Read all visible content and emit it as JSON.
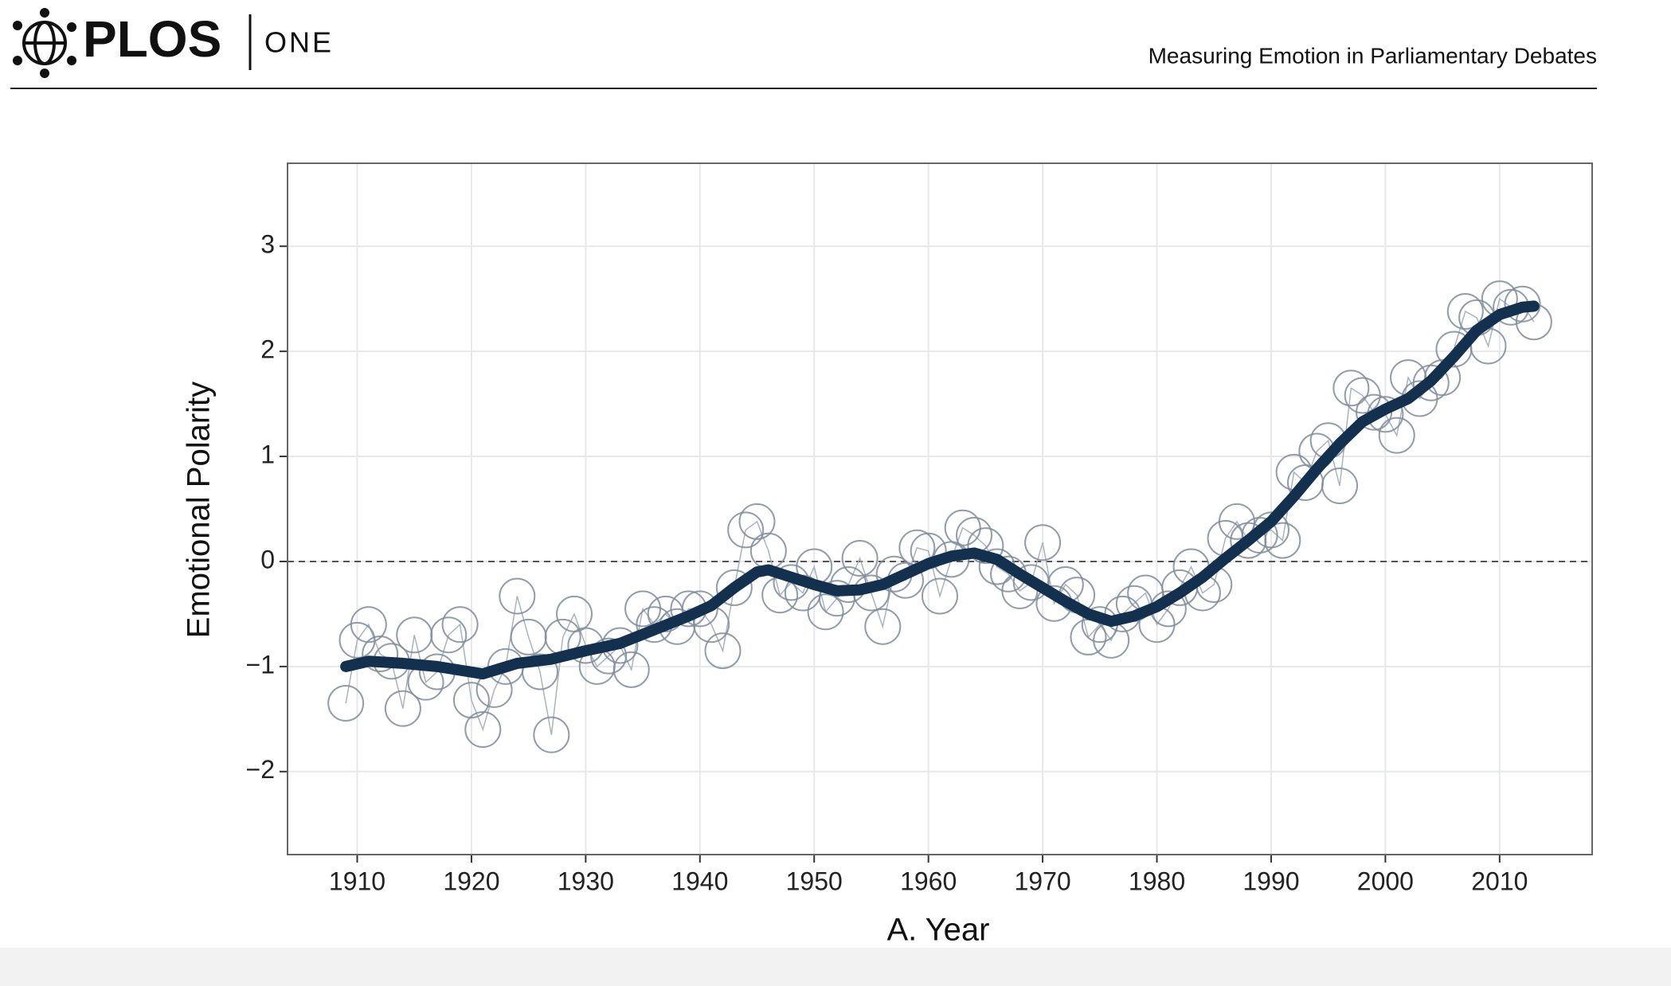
{
  "header": {
    "logo": "PLOS",
    "journal": "ONE",
    "running_title": "Measuring Emotion in Parliamentary Debates"
  },
  "chart_data": {
    "type": "scatter",
    "xlabel": "A. Year",
    "ylabel": "Emotional Polarity",
    "xlim": [
      1903.9,
      2018.1
    ],
    "ylim": [
      -2.79,
      3.79
    ],
    "xticks": [
      1910,
      1920,
      1930,
      1940,
      1950,
      1960,
      1970,
      1980,
      1990,
      2000,
      2010
    ],
    "yticks": [
      {
        "value": -2,
        "label": "−2"
      },
      {
        "value": -1,
        "label": "−1"
      },
      0,
      1,
      2,
      3
    ],
    "grid": true,
    "reference_line": 0,
    "series": [
      {
        "type": "scatter",
        "color": "#7f8c9b",
        "x": [
          1909,
          1910,
          1911,
          1912,
          1913,
          1914,
          1915,
          1916,
          1917,
          1918,
          1919,
          1920,
          1921,
          1922,
          1923,
          1924,
          1925,
          1926,
          1927,
          1928,
          1929,
          1930,
          1931,
          1932,
          1933,
          1934,
          1935,
          1936,
          1937,
          1938,
          1939,
          1940,
          1941,
          1942,
          1943,
          1944,
          1945,
          1946,
          1947,
          1948,
          1949,
          1950,
          1951,
          1952,
          1953,
          1954,
          1955,
          1956,
          1957,
          1958,
          1959,
          1960,
          1961,
          1962,
          1963,
          1964,
          1965,
          1966,
          1967,
          1968,
          1969,
          1970,
          1971,
          1972,
          1973,
          1974,
          1975,
          1976,
          1977,
          1978,
          1979,
          1980,
          1981,
          1982,
          1983,
          1984,
          1985,
          1986,
          1987,
          1988,
          1989,
          1990,
          1991,
          1992,
          1993,
          1994,
          1995,
          1996,
          1997,
          1998,
          1999,
          2000,
          2001,
          2002,
          2003,
          2004,
          2005,
          2006,
          2007,
          2008,
          2009,
          2010,
          2011,
          2012,
          2013
        ],
        "values": [
          -1.35,
          -0.75,
          -0.6,
          -0.88,
          -0.95,
          -1.4,
          -0.7,
          -1.15,
          -1.05,
          -0.7,
          -0.6,
          -1.32,
          -1.6,
          -1.22,
          -1.0,
          -0.33,
          -0.72,
          -1.05,
          -1.65,
          -0.72,
          -0.5,
          -0.8,
          -1.0,
          -0.9,
          -0.8,
          -1.03,
          -0.45,
          -0.6,
          -0.5,
          -0.62,
          -0.45,
          -0.45,
          -0.6,
          -0.85,
          -0.25,
          0.3,
          0.38,
          0.1,
          -0.32,
          -0.2,
          -0.3,
          -0.05,
          -0.48,
          -0.35,
          -0.22,
          0.03,
          -0.3,
          -0.62,
          -0.12,
          -0.18,
          0.13,
          0.1,
          -0.33,
          0.02,
          0.32,
          0.25,
          0.15,
          -0.05,
          -0.12,
          -0.28,
          -0.2,
          0.18,
          -0.4,
          -0.22,
          -0.32,
          -0.72,
          -0.6,
          -0.75,
          -0.5,
          -0.4,
          -0.3,
          -0.6,
          -0.45,
          -0.25,
          -0.05,
          -0.3,
          -0.22,
          0.22,
          0.38,
          0.2,
          0.25,
          0.3,
          0.2,
          0.85,
          0.75,
          1.05,
          1.15,
          0.72,
          1.65,
          1.58,
          1.42,
          1.4,
          1.2,
          1.75,
          1.55,
          1.7,
          1.75,
          2.02,
          2.38,
          2.32,
          2.05,
          2.5,
          2.42,
          2.45,
          2.28
        ]
      },
      {
        "type": "line",
        "color": "#14304f",
        "x": [
          1909,
          1911,
          1914,
          1917,
          1921,
          1924,
          1927,
          1930,
          1933,
          1936,
          1939,
          1941,
          1943,
          1945,
          1946,
          1948,
          1950,
          1952,
          1954,
          1956,
          1958,
          1960,
          1962,
          1964,
          1966,
          1968,
          1970,
          1972,
          1974,
          1976,
          1978,
          1980,
          1982,
          1984,
          1986,
          1988,
          1990,
          1992,
          1994,
          1996,
          1998,
          2000,
          2002,
          2004,
          2006,
          2008,
          2010,
          2012,
          2013
        ],
        "values": [
          -1.0,
          -0.95,
          -0.97,
          -1.0,
          -1.07,
          -0.97,
          -0.93,
          -0.85,
          -0.78,
          -0.65,
          -0.52,
          -0.42,
          -0.25,
          -0.1,
          -0.08,
          -0.15,
          -0.22,
          -0.28,
          -0.27,
          -0.22,
          -0.12,
          -0.02,
          0.05,
          0.08,
          0.02,
          -0.12,
          -0.25,
          -0.38,
          -0.5,
          -0.57,
          -0.52,
          -0.43,
          -0.3,
          -0.15,
          0.03,
          0.2,
          0.38,
          0.62,
          0.88,
          1.12,
          1.33,
          1.45,
          1.55,
          1.72,
          1.95,
          2.2,
          2.35,
          2.42,
          2.43
        ]
      }
    ]
  }
}
